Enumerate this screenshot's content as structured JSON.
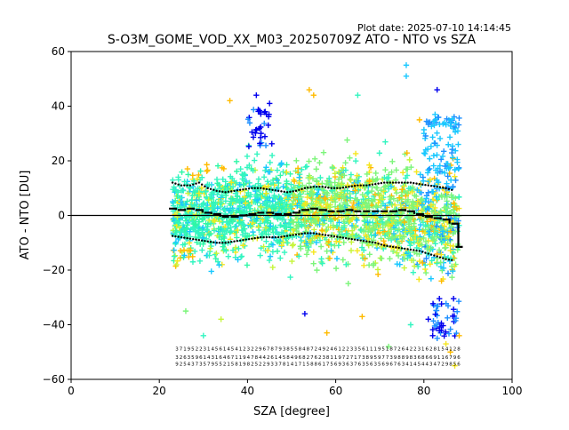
{
  "plot_date": "Plot date: 2025-07-10 14:14:45",
  "chart_data": {
    "type": "scatter",
    "title": "S-O3M_GOME_VOD_XX_M03_20250709Z ATO - NTO vs SZA",
    "xlabel": "SZA [degree]",
    "ylabel": "ATO - NTO [DU]",
    "xlim": [
      0,
      100
    ],
    "ylim": [
      -60,
      60
    ],
    "xticks": [
      "0",
      "20",
      "40",
      "60",
      "80",
      "100"
    ],
    "yticks": [
      "60",
      "40",
      "20",
      "0",
      "−20",
      "−40",
      "−60"
    ],
    "grid": false,
    "legend": "none",
    "zero_line": 0,
    "colors": {
      "dark_blue": "#0000ee",
      "blue": "#1e90ff",
      "cyan": "#19c8ff",
      "aquamarine": "#33f5c0",
      "mint": "#2ef7a6",
      "green": "#7cf57a",
      "lime": "#c6f53a",
      "yellow": "#f5e61e",
      "orange": "#ffbb00"
    },
    "scatter_envelope": {
      "x_range": [
        23,
        88
      ],
      "upper": [
        [
          23,
          28
        ],
        [
          30,
          30
        ],
        [
          40,
          32
        ],
        [
          50,
          30
        ],
        [
          60,
          34
        ],
        [
          70,
          32
        ],
        [
          80,
          30
        ],
        [
          88,
          35
        ]
      ],
      "lower": [
        [
          23,
          -28
        ],
        [
          30,
          -30
        ],
        [
          40,
          -28
        ],
        [
          50,
          -26
        ],
        [
          60,
          -30
        ],
        [
          70,
          -30
        ],
        [
          80,
          -34
        ],
        [
          88,
          -40
        ]
      ]
    },
    "series": [
      {
        "name": "mean",
        "x": [
          23,
          25,
          27,
          29,
          31,
          33,
          35,
          37,
          39,
          41,
          43,
          45,
          47,
          49,
          51,
          53,
          55,
          57,
          59,
          61,
          63,
          65,
          67,
          69,
          71,
          73,
          75,
          77,
          79,
          81,
          83,
          85,
          87,
          88
        ],
        "y": [
          2.5,
          2,
          2.5,
          2,
          1,
          0.5,
          -0.5,
          -0.5,
          0,
          0.5,
          1,
          1,
          0.5,
          0.5,
          1,
          2,
          2.5,
          2,
          1.5,
          1.5,
          2,
          1.5,
          1.5,
          1.5,
          1.5,
          1.5,
          2,
          1.5,
          0.5,
          -0.5,
          -1,
          -1.5,
          -3,
          -11.5
        ]
      },
      {
        "name": "mean + std",
        "x": [
          23,
          25,
          27,
          29,
          31,
          33,
          35,
          37,
          39,
          41,
          43,
          45,
          47,
          49,
          51,
          53,
          55,
          57,
          59,
          61,
          63,
          65,
          67,
          69,
          71,
          73,
          75,
          77,
          79,
          81,
          83,
          85,
          87
        ],
        "y": [
          12,
          11,
          11,
          12,
          10,
          9,
          8.5,
          9,
          9.5,
          10,
          10,
          9.5,
          9,
          8.5,
          9,
          10,
          10.5,
          10.5,
          10,
          10,
          10.5,
          11,
          11,
          11.5,
          12,
          12,
          12,
          12,
          11.5,
          11,
          10.5,
          10,
          9
        ]
      },
      {
        "name": "mean - std",
        "x": [
          23,
          25,
          27,
          29,
          31,
          33,
          35,
          37,
          39,
          41,
          43,
          45,
          47,
          49,
          51,
          53,
          55,
          57,
          59,
          61,
          63,
          65,
          67,
          69,
          71,
          73,
          75,
          77,
          79,
          81,
          83,
          85,
          87
        ],
        "y": [
          -7.5,
          -8,
          -8.5,
          -9,
          -9.5,
          -10,
          -10,
          -9.5,
          -9,
          -8.5,
          -8,
          -8,
          -8,
          -7.5,
          -7,
          -6.5,
          -6.5,
          -7,
          -7.5,
          -8,
          -8.5,
          -9,
          -9.5,
          -10,
          -11,
          -11.5,
          -12,
          -12.5,
          -13,
          -14,
          -15,
          -16,
          -16.5
        ]
      }
    ],
    "outliers": [
      {
        "x": 42,
        "y": 44,
        "c": "dark_blue"
      },
      {
        "x": 45,
        "y": 41,
        "c": "dark_blue"
      },
      {
        "x": 44,
        "y": 38,
        "c": "dark_blue"
      },
      {
        "x": 36,
        "y": 42,
        "c": "orange"
      },
      {
        "x": 54,
        "y": 46,
        "c": "orange"
      },
      {
        "x": 55,
        "y": 44,
        "c": "orange"
      },
      {
        "x": 76,
        "y": 55,
        "c": "cyan"
      },
      {
        "x": 76,
        "y": 51,
        "c": "cyan"
      },
      {
        "x": 83,
        "y": 46,
        "c": "dark_blue"
      },
      {
        "x": 65,
        "y": 44,
        "c": "aquamarine"
      },
      {
        "x": 79,
        "y": 35,
        "c": "orange"
      },
      {
        "x": 30,
        "y": -44,
        "c": "aquamarine"
      },
      {
        "x": 58,
        "y": -43,
        "c": "orange"
      },
      {
        "x": 53,
        "y": -36,
        "c": "dark_blue"
      },
      {
        "x": 66,
        "y": -37,
        "c": "orange"
      },
      {
        "x": 77,
        "y": -40,
        "c": "aquamarine"
      },
      {
        "x": 82,
        "y": -44,
        "c": "dark_blue"
      },
      {
        "x": 84,
        "y": -42,
        "c": "dark_blue"
      },
      {
        "x": 86,
        "y": -50,
        "c": "orange"
      },
      {
        "x": 87,
        "y": -55,
        "c": "yellow"
      },
      {
        "x": 81,
        "y": -38,
        "c": "dark_blue"
      },
      {
        "x": 26,
        "y": -35,
        "c": "green"
      },
      {
        "x": 34,
        "y": -38,
        "c": "lime"
      },
      {
        "x": 72,
        "y": -48,
        "c": "green"
      },
      {
        "x": 85,
        "y": -47,
        "c": "yellow"
      },
      {
        "x": 88,
        "y": -44,
        "c": "orange"
      }
    ],
    "bin_count_labels": {
      "note": "tiny per-bin sample counts printed in three staggered rows near y=-50 (illegible at this resolution)",
      "x_range": [
        24,
        88
      ],
      "rows": [
        -49.5,
        -52.5,
        -55
      ]
    }
  }
}
